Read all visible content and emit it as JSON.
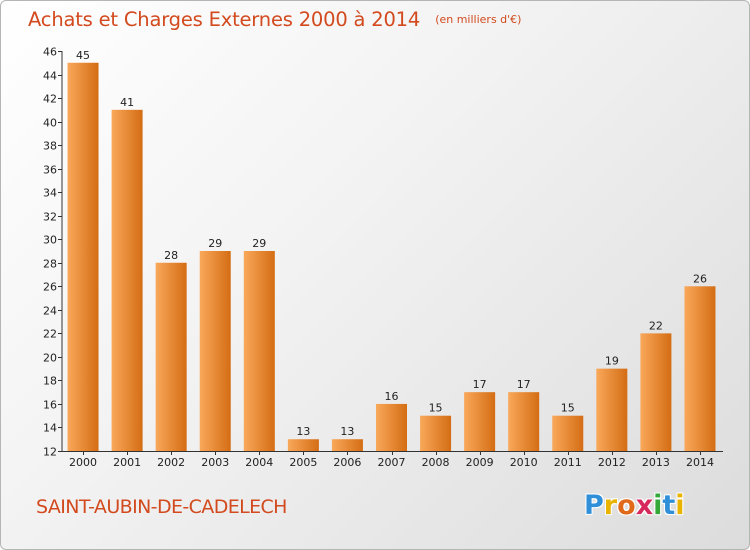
{
  "header": {
    "title": "Achats et Charges Externes 2000 à 2014",
    "subtitle": "(en milliers d'€)"
  },
  "footer": {
    "commune": "SAINT-AUBIN-DE-CADELECH",
    "logo_letters": [
      "P",
      "r",
      "o",
      "x",
      "i",
      "t",
      "i"
    ],
    "logo_colors": [
      "#2f8fd8",
      "#e8b400",
      "#e06a1a",
      "#d62a5c",
      "#35a83a",
      "#2f8fd8",
      "#e8b400"
    ]
  },
  "colors": {
    "bar_light": "#f9a85a",
    "bar_dark": "#d46d14",
    "text": "#222222",
    "accent": "#d24a1e"
  },
  "chart_data": {
    "type": "bar",
    "title": "Achats et Charges Externes 2000 à 2014",
    "subtitle": "(en milliers d'€)",
    "categories": [
      "2000",
      "2001",
      "2002",
      "2003",
      "2004",
      "2005",
      "2006",
      "2007",
      "2008",
      "2009",
      "2010",
      "2011",
      "2012",
      "2013",
      "2014"
    ],
    "values": [
      45,
      41,
      28,
      29,
      29,
      13,
      13,
      16,
      15,
      17,
      17,
      15,
      19,
      22,
      26
    ],
    "ylim": [
      12,
      46
    ],
    "yticks": [
      12,
      14,
      16,
      18,
      20,
      22,
      24,
      26,
      28,
      30,
      32,
      34,
      36,
      38,
      40,
      42,
      44,
      46
    ],
    "grid": false,
    "data_labels": true
  }
}
